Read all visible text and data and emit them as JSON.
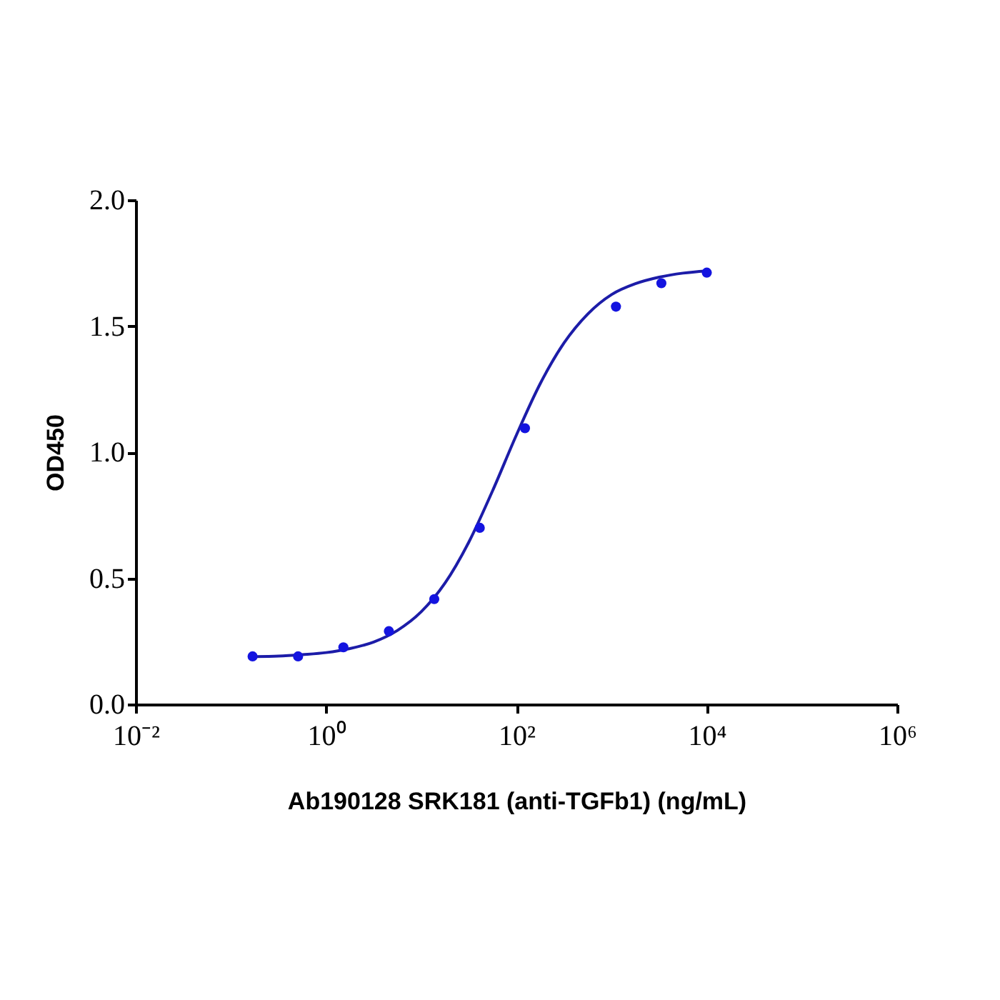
{
  "chart_data": {
    "type": "scatter",
    "xlabel": "Ab190128 SRK181 (anti-TGFb1) (ng/mL)",
    "ylabel": "OD450",
    "log": "x",
    "grid": false,
    "xlim": [
      0.01,
      1000000
    ],
    "xticks": [
      {
        "value": 0.01,
        "label": "10⁻²"
      },
      {
        "value": 1,
        "label": "10⁰"
      },
      {
        "value": 100,
        "label": "10²"
      },
      {
        "value": 10000,
        "label": "10⁴"
      },
      {
        "value": 1000000,
        "label": "10⁶"
      }
    ],
    "ylim": [
      0,
      2
    ],
    "yticks": [
      {
        "value": 0,
        "label": "0.0"
      },
      {
        "value": 0.5,
        "label": "0.5"
      },
      {
        "value": 1,
        "label": "1.0"
      },
      {
        "value": 1.5,
        "label": "1.5"
      },
      {
        "value": 2,
        "label": "2.0"
      }
    ],
    "series": [
      {
        "type": "line",
        "color": "#1c1ca8",
        "marker": "none",
        "line_style": "solid",
        "x": [
          0.178,
          0.316,
          0.562,
          1,
          1.78,
          3.16,
          5.62,
          10,
          17.8,
          31.6,
          56.2,
          100,
          178,
          316,
          562,
          1000,
          1778,
          3162,
          5623,
          10000
        ],
        "values": [
          0.189,
          0.191,
          0.197,
          0.205,
          0.221,
          0.247,
          0.293,
          0.367,
          0.481,
          0.643,
          0.847,
          1.068,
          1.272,
          1.433,
          1.548,
          1.625,
          1.668,
          1.694,
          1.71,
          1.719
        ]
      },
      {
        "type": "scatter",
        "color": "#1414e0",
        "marker": "circle",
        "x": [
          0.169,
          0.508,
          1.52,
          4.57,
          13.7,
          41.2,
          123,
          1111,
          3333,
          10000
        ],
        "values": [
          0.19,
          0.19,
          0.226,
          0.29,
          0.417,
          0.7,
          1.095,
          1.577,
          1.67,
          1.712
        ]
      }
    ]
  }
}
